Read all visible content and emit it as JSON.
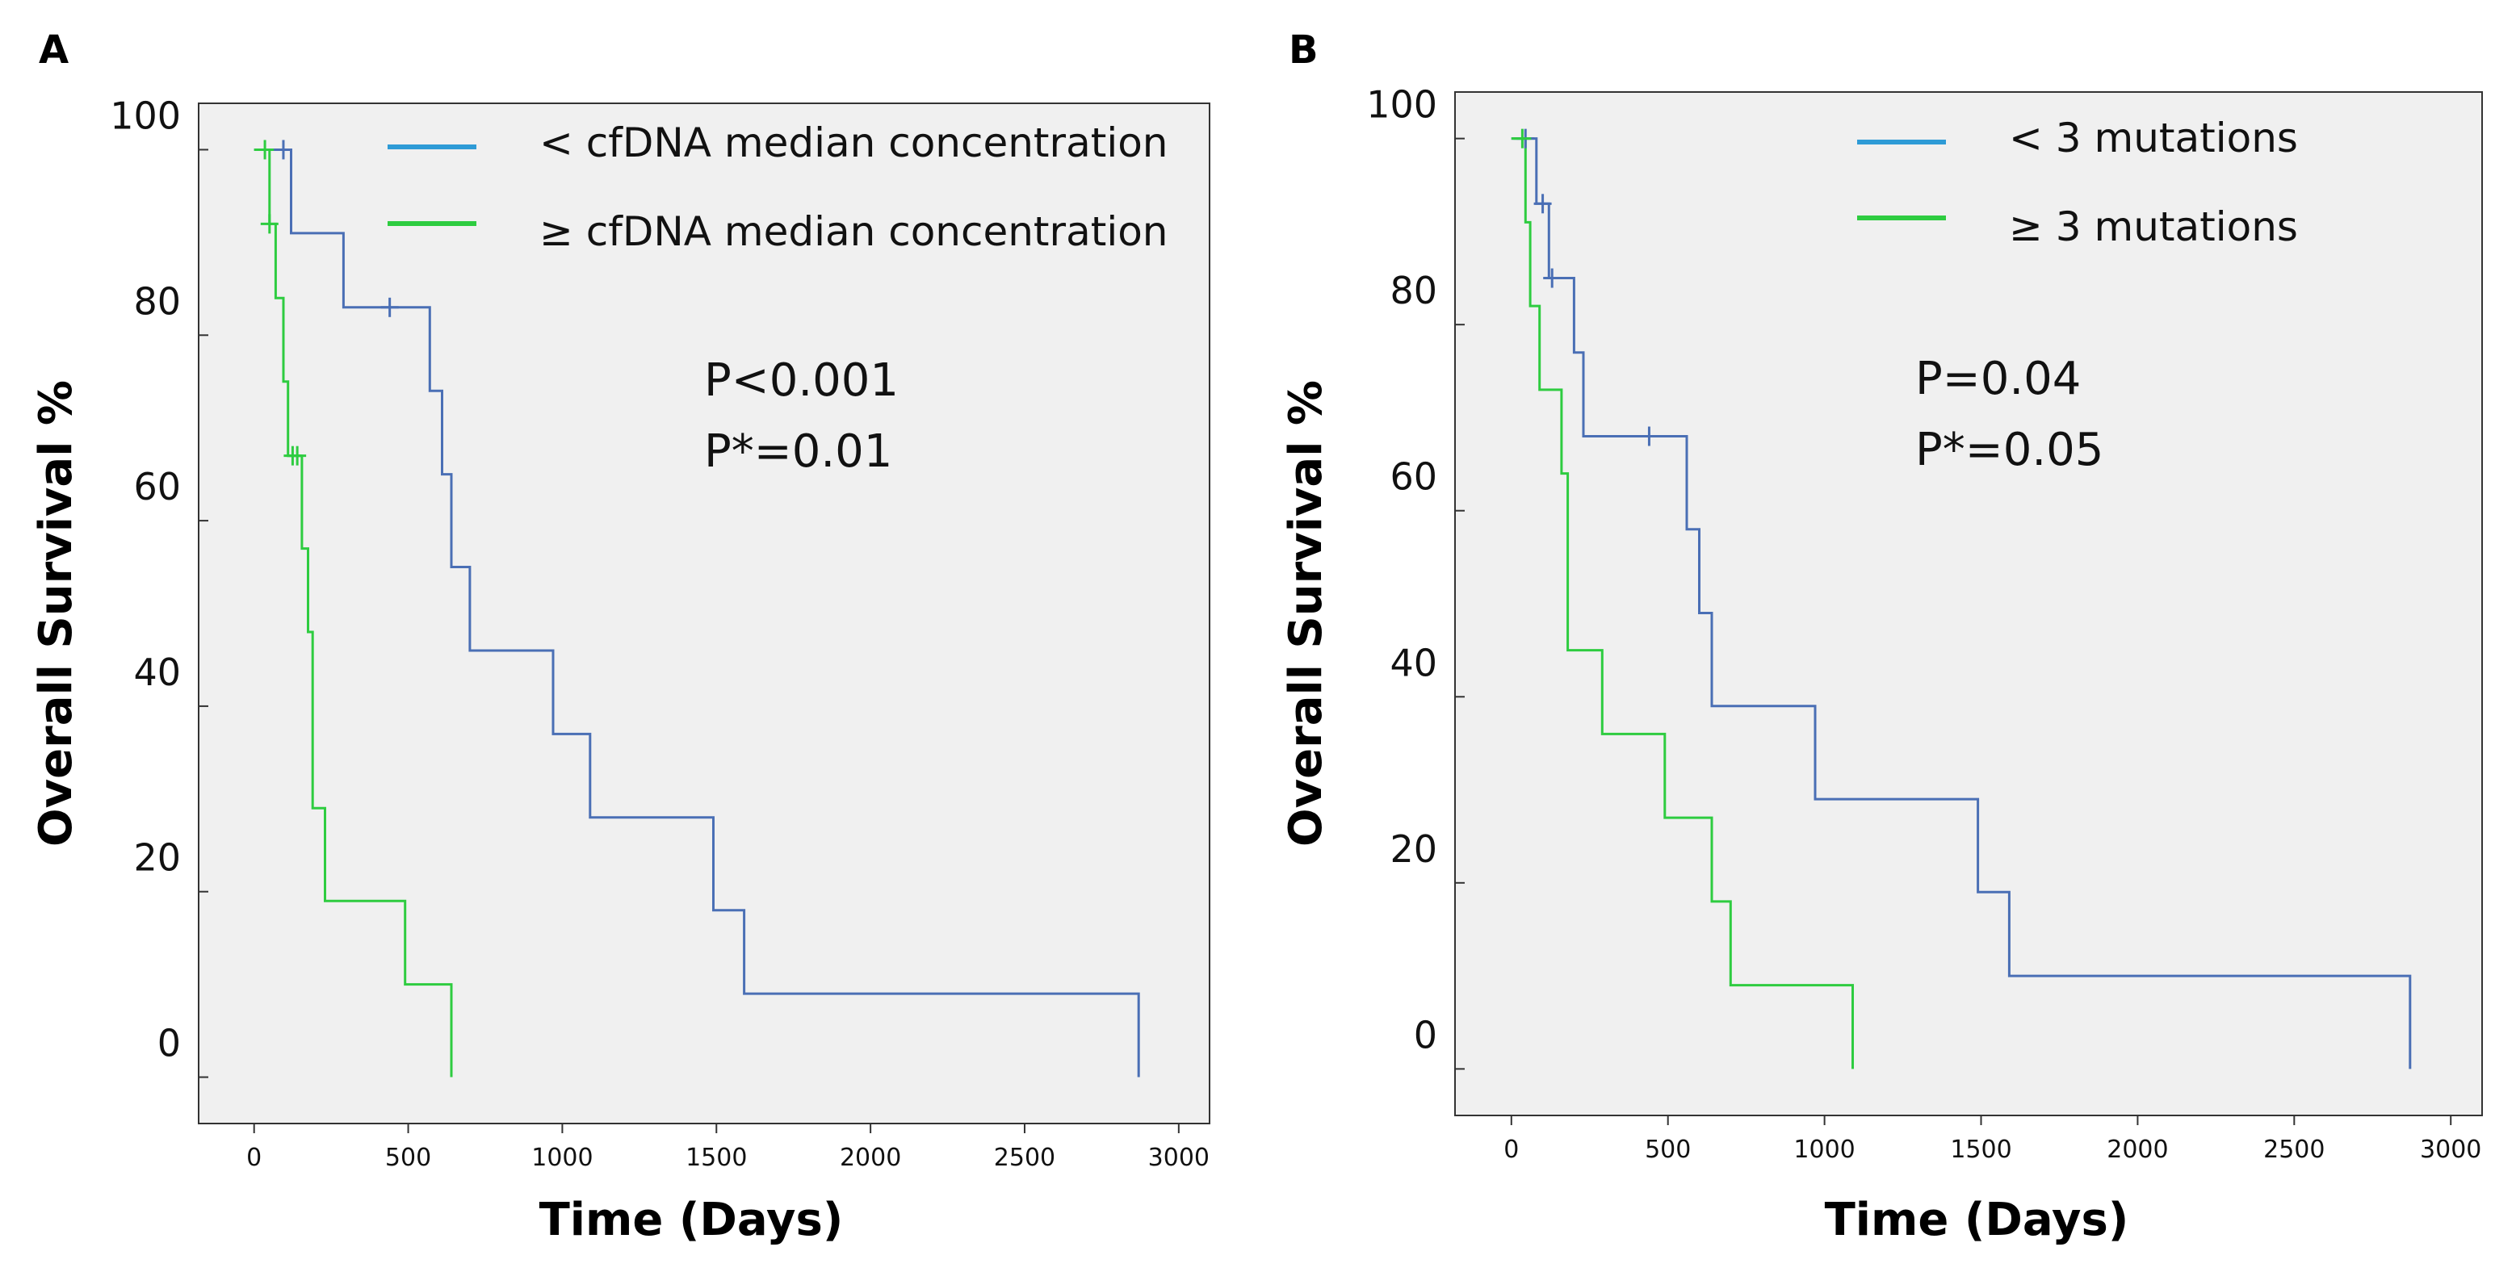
{
  "chart_data": [
    {
      "type": "line",
      "panel_label": "A",
      "xlabel": "Time (Days)",
      "ylabel": "Overall Survival %",
      "xlim": [
        -180,
        3100
      ],
      "ylim": [
        -5,
        105
      ],
      "xticks": [
        "0",
        "500",
        "1000",
        "1500",
        "2000",
        "2500",
        "3000"
      ],
      "yticks": [
        "0",
        "20",
        "40",
        "60",
        "80",
        "100"
      ],
      "grid": false,
      "legend_position": "top-right",
      "annotations": [
        "P<0.001",
        "P*=0.01"
      ],
      "series": [
        {
          "name": "< cfDNA median concentration",
          "color": "#4a6fb5",
          "legend_color": "#2e9bd6",
          "x": [
            0,
            120,
            120,
            290,
            290,
            570,
            570,
            610,
            610,
            640,
            640,
            700,
            700,
            970,
            970,
            1090,
            1090,
            1490,
            1490,
            1590,
            1590,
            2870,
            2870
          ],
          "y": [
            100,
            100,
            91,
            91,
            83,
            83,
            74,
            74,
            65,
            65,
            55,
            55,
            46,
            46,
            37,
            37,
            28,
            28,
            18,
            18,
            9,
            9,
            0
          ],
          "censor_x": [
            95,
            440
          ],
          "censor_y": [
            100,
            83
          ]
        },
        {
          "name": "≥ cfDNA median concentration",
          "color": "#2ecc40",
          "legend_color": "#2ecc40",
          "x": [
            0,
            50,
            50,
            70,
            70,
            95,
            95,
            110,
            110,
            155,
            155,
            175,
            175,
            190,
            190,
            230,
            230,
            490,
            490,
            640,
            640
          ],
          "y": [
            100,
            100,
            92,
            92,
            84,
            84,
            75,
            75,
            67,
            67,
            57,
            57,
            48,
            48,
            29,
            29,
            19,
            19,
            10,
            10,
            0
          ],
          "censor_x": [
            35,
            50,
            125,
            140
          ],
          "censor_y": [
            100,
            92,
            67,
            67
          ]
        }
      ]
    },
    {
      "type": "line",
      "panel_label": "B",
      "xlabel": "Time (Days)",
      "ylabel": "Overall Survival %",
      "xlim": [
        -180,
        3100
      ],
      "ylim": [
        -5,
        105
      ],
      "xticks": [
        "0",
        "500",
        "1000",
        "1500",
        "2000",
        "2500",
        "3000"
      ],
      "yticks": [
        "0",
        "20",
        "40",
        "60",
        "80",
        "100"
      ],
      "grid": false,
      "legend_position": "top-right",
      "annotations": [
        "P=0.04",
        "P*=0.05"
      ],
      "series": [
        {
          "name": "< 3 mutations",
          "color": "#4a6fb5",
          "legend_color": "#2e9bd6",
          "x": [
            0,
            80,
            80,
            120,
            120,
            200,
            200,
            230,
            230,
            560,
            560,
            600,
            600,
            640,
            640,
            970,
            970,
            1490,
            1490,
            1590,
            1590,
            2870,
            2870
          ],
          "y": [
            100,
            100,
            93,
            93,
            85,
            85,
            77,
            77,
            68,
            68,
            58,
            58,
            49,
            49,
            39,
            39,
            29,
            29,
            19,
            19,
            10,
            10,
            0
          ],
          "censor_x": [
            45,
            100,
            130,
            440
          ],
          "censor_y": [
            100,
            93,
            85,
            68
          ]
        },
        {
          "name": "≥ 3 mutations",
          "color": "#2ecc40",
          "legend_color": "#2ecc40",
          "x": [
            0,
            45,
            45,
            60,
            60,
            90,
            90,
            160,
            160,
            180,
            180,
            290,
            290,
            490,
            490,
            640,
            640,
            700,
            700,
            1090,
            1090
          ],
          "y": [
            100,
            100,
            91,
            91,
            82,
            82,
            73,
            73,
            64,
            64,
            45,
            45,
            36,
            36,
            27,
            27,
            18,
            18,
            9,
            9,
            0
          ],
          "censor_x": [
            35
          ],
          "censor_y": [
            100
          ]
        }
      ]
    }
  ]
}
